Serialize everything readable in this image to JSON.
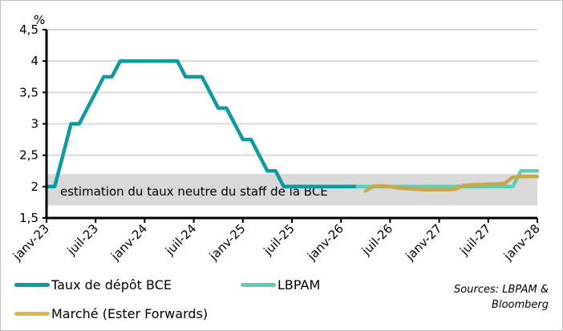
{
  "chart_data": {
    "type": "line",
    "title": "",
    "xlabel": "",
    "ylabel": "%",
    "ylim": [
      1.5,
      4.5
    ],
    "y_ticks": [
      "1,5",
      "2",
      "2,5",
      "3",
      "3,5",
      "4",
      "4,5"
    ],
    "x_ticks": [
      "janv-23",
      "juil-23",
      "janv-24",
      "juil-24",
      "janv-25",
      "juil-25",
      "janv-26",
      "juil-26",
      "janv-27",
      "juil-27",
      "janv-28"
    ],
    "grid": true,
    "band": {
      "from": 1.7,
      "to": 2.2,
      "label": "estimation du taux neutre du staff de la BCE",
      "color": "#d9d9d9"
    },
    "series": [
      {
        "name": "Taux de dépôt BCE",
        "color": "#0f9aa0",
        "points": [
          [
            "2023-01",
            2.0
          ],
          [
            "2023-02",
            2.0
          ],
          [
            "2023-03",
            2.5
          ],
          [
            "2023-04",
            3.0
          ],
          [
            "2023-05",
            3.0
          ],
          [
            "2023-06",
            3.25
          ],
          [
            "2023-07",
            3.5
          ],
          [
            "2023-08",
            3.75
          ],
          [
            "2023-09",
            3.75
          ],
          [
            "2023-10",
            4.0
          ],
          [
            "2023-11",
            4.0
          ],
          [
            "2023-12",
            4.0
          ],
          [
            "2024-01",
            4.0
          ],
          [
            "2024-02",
            4.0
          ],
          [
            "2024-03",
            4.0
          ],
          [
            "2024-04",
            4.0
          ],
          [
            "2024-05",
            4.0
          ],
          [
            "2024-06",
            3.75
          ],
          [
            "2024-07",
            3.75
          ],
          [
            "2024-08",
            3.75
          ],
          [
            "2024-09",
            3.5
          ],
          [
            "2024-10",
            3.25
          ],
          [
            "2024-11",
            3.25
          ],
          [
            "2024-12",
            3.0
          ],
          [
            "2025-01",
            2.75
          ],
          [
            "2025-02",
            2.75
          ],
          [
            "2025-03",
            2.5
          ],
          [
            "2025-04",
            2.25
          ],
          [
            "2025-05",
            2.25
          ],
          [
            "2025-06",
            2.0
          ],
          [
            "2025-07",
            2.0
          ],
          [
            "2025-08",
            2.0
          ],
          [
            "2025-09",
            2.0
          ],
          [
            "2025-10",
            2.0
          ],
          [
            "2025-11",
            2.0
          ],
          [
            "2025-12",
            2.0
          ],
          [
            "2026-01",
            2.0
          ],
          [
            "2026-02",
            2.0
          ],
          [
            "2026-03",
            2.0
          ]
        ]
      },
      {
        "name": "LBPAM",
        "color": "#5fcdb5",
        "points": [
          [
            "2026-03",
            2.0
          ],
          [
            "2026-06",
            2.0
          ],
          [
            "2026-09",
            2.0
          ],
          [
            "2026-12",
            2.0
          ],
          [
            "2027-03",
            2.0
          ],
          [
            "2027-06",
            2.0
          ],
          [
            "2027-09",
            2.0
          ],
          [
            "2027-10",
            2.0
          ],
          [
            "2027-11",
            2.25
          ],
          [
            "2028-01",
            2.25
          ]
        ]
      },
      {
        "name": "Marché (Ester Forwards)",
        "color": "#c9a84b",
        "points": [
          [
            "2026-04",
            1.93
          ],
          [
            "2026-05",
            2.01
          ],
          [
            "2026-06",
            2.01
          ],
          [
            "2026-07",
            2.0
          ],
          [
            "2026-08",
            1.98
          ],
          [
            "2026-09",
            1.97
          ],
          [
            "2026-10",
            1.96
          ],
          [
            "2026-11",
            1.95
          ],
          [
            "2026-12",
            1.95
          ],
          [
            "2027-01",
            1.95
          ],
          [
            "2027-02",
            1.95
          ],
          [
            "2027-03",
            1.96
          ],
          [
            "2027-04",
            2.02
          ],
          [
            "2027-05",
            2.03
          ],
          [
            "2027-06",
            2.03
          ],
          [
            "2027-07",
            2.04
          ],
          [
            "2027-08",
            2.04
          ],
          [
            "2027-09",
            2.05
          ],
          [
            "2027-10",
            2.15
          ],
          [
            "2027-11",
            2.16
          ],
          [
            "2027-12",
            2.16
          ],
          [
            "2028-01",
            2.16
          ]
        ]
      }
    ],
    "legend_position": "bottom"
  },
  "legend": {
    "items": [
      {
        "label": "Taux de dépôt BCE",
        "color": "#0f9aa0"
      },
      {
        "label": "LBPAM",
        "color": "#5fcdb5"
      },
      {
        "label": "Marché (Ester Forwards)",
        "color": "#d9b84a"
      }
    ]
  },
  "sources": {
    "line1": "Sources: LBPAM &",
    "line2": "Bloomberg"
  },
  "axis": {
    "unit": "%"
  }
}
